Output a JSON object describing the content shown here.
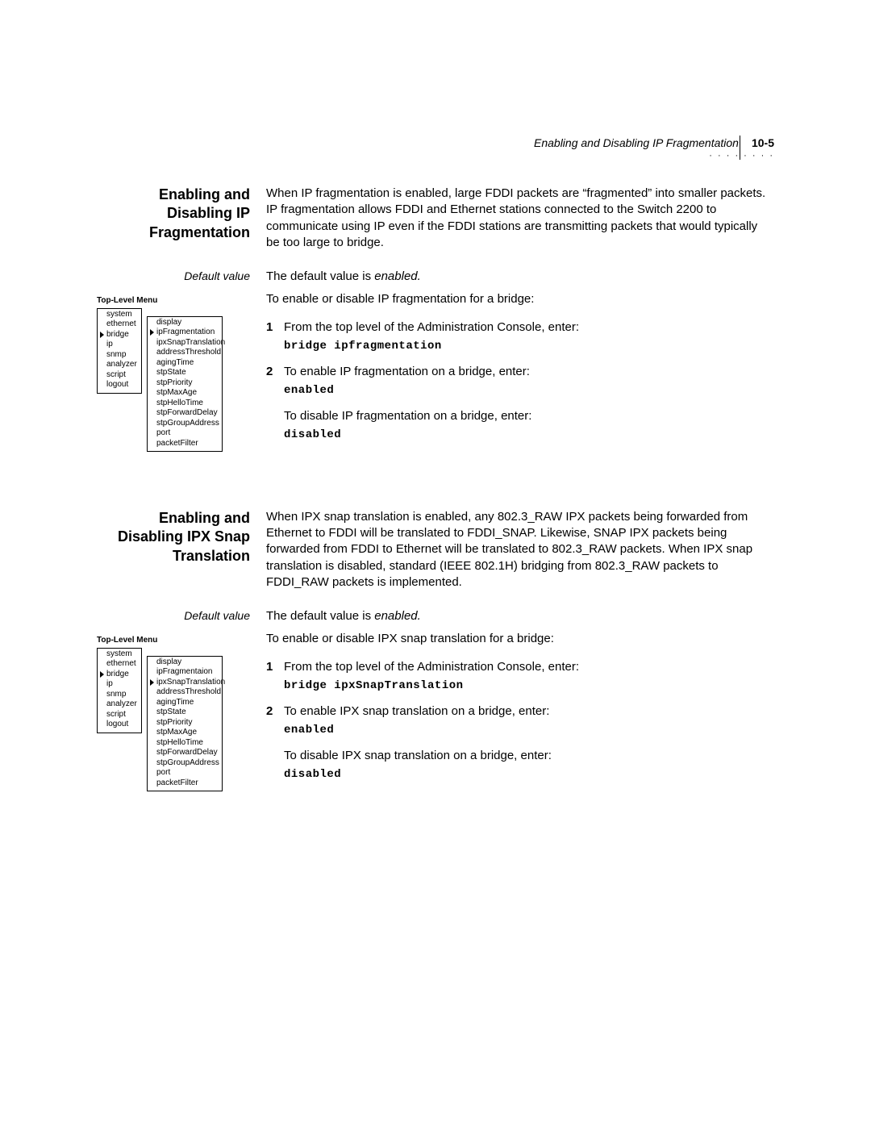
{
  "running_head": {
    "title": "Enabling and Disabling IP Fragmentation",
    "page": "10-5",
    "dots": "· · · · · · · ·"
  },
  "sections": [
    {
      "heading": "Enabling and Disabling IP Fragmentation",
      "intro": "When IP fragmentation is enabled, large FDDI packets are “fragmented” into smaller packets. IP fragmentation allows FDDI and Ethernet stations connected to the Switch 2200 to communicate using IP even if the FDDI stations are transmitting packets that would typically be too large to bridge.",
      "default_label": "Default value",
      "default_text_pre": "The default value is ",
      "default_text_em": "enabled.",
      "lead": "To enable or disable IP fragmentation for a bridge:",
      "steps": [
        {
          "text": "From the top level of the Administration Console, enter:",
          "command": "bridge  ipfragmentation"
        },
        {
          "text": "To enable IP fragmentation on a bridge, enter:",
          "command": "enabled",
          "text2": "To disable IP fragmentation on a bridge, enter:",
          "command2": "disabled"
        }
      ],
      "menu_title": "Top-Level Menu",
      "menu_col1": [
        "system",
        "ethernet",
        "bridge",
        "ip",
        "snmp",
        "analyzer",
        "script",
        "logout"
      ],
      "menu_col1_arrow": "bridge",
      "menu_col2": [
        "display",
        "ipFragmentation",
        "ipxSnapTranslation",
        "addressThreshold",
        "agingTime",
        "stpState",
        "stpPriority",
        "stpMaxAge",
        "stpHelloTime",
        "stpForwardDelay",
        "stpGroupAddress",
        "port",
        "packetFilter"
      ],
      "menu_col2_arrow": "ipFragmentation"
    },
    {
      "heading": "Enabling and Disabling IPX Snap Translation",
      "intro": "When IPX snap translation is enabled, any 802.3_RAW IPX packets being forwarded from Ethernet to FDDI will be translated to FDDI_SNAP. Likewise, SNAP IPX packets being forwarded from FDDI to Ethernet will be translated to 802.3_RAW packets. When IPX snap translation is disabled, standard (IEEE 802.1H) bridging from 802.3_RAW packets to FDDI_RAW packets is implemented.",
      "default_label": "Default value",
      "default_text_pre": "The default value is ",
      "default_text_em": "enabled.",
      "lead": "To enable or disable IPX snap translation for a bridge:",
      "steps": [
        {
          "text": "From the top level of the Administration Console, enter:",
          "command": "bridge  ipxSnapTranslation"
        },
        {
          "text": "To enable IPX snap translation on a bridge, enter:",
          "command": "enabled",
          "text2": "To disable IPX snap translation on a bridge, enter:",
          "command2": "disabled"
        }
      ],
      "menu_title": "Top-Level Menu",
      "menu_col1": [
        "system",
        "ethernet",
        "bridge",
        "ip",
        "snmp",
        "analyzer",
        "script",
        "logout"
      ],
      "menu_col1_arrow": "bridge",
      "menu_col2": [
        "display",
        "ipFragmentaion",
        "ipxSnapTranslation",
        "addressThreshold",
        "agingTime",
        "stpState",
        "stpPriority",
        "stpMaxAge",
        "stpHelloTime",
        "stpForwardDelay",
        "stpGroupAddress",
        "port",
        "packetFilter"
      ],
      "menu_col2_arrow": "ipxSnapTranslation"
    }
  ]
}
